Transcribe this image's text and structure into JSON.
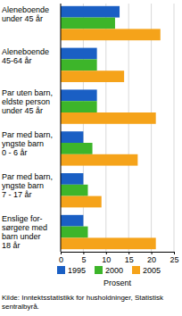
{
  "chart_data": {
    "type": "bar",
    "orientation": "horizontal",
    "categories": [
      "Aleneboende\nunder 45 år",
      "Aleneboende\n45-64 år",
      "Par uten barn,\neldste person\nunder 45 år",
      "Par med barn,\nyngste barn\n0 - 6 år",
      "Par med barn,\nyngste barn\n7 - 17 år",
      "Enslige for-\nsørgere med\nbarn under\n18 år"
    ],
    "series": [
      {
        "name": "1995",
        "color": "#1a5fc4",
        "values": [
          13,
          8,
          8,
          5,
          5,
          5
        ]
      },
      {
        "name": "2000",
        "color": "#3db52a",
        "values": [
          12,
          8,
          8,
          7,
          6,
          6
        ]
      },
      {
        "name": "2005",
        "color": "#f5a31a",
        "values": [
          22,
          14,
          21,
          17,
          9,
          21
        ]
      }
    ],
    "xlim": [
      0,
      25
    ],
    "xticks": [
      0,
      5,
      10,
      15,
      20,
      25
    ],
    "xlabel": "Prosent",
    "source": "Kilde: Inntektsstatistikk for husholdninger, Statistisk\nsentralbyrå.",
    "grid": true,
    "legend": "bottom"
  }
}
